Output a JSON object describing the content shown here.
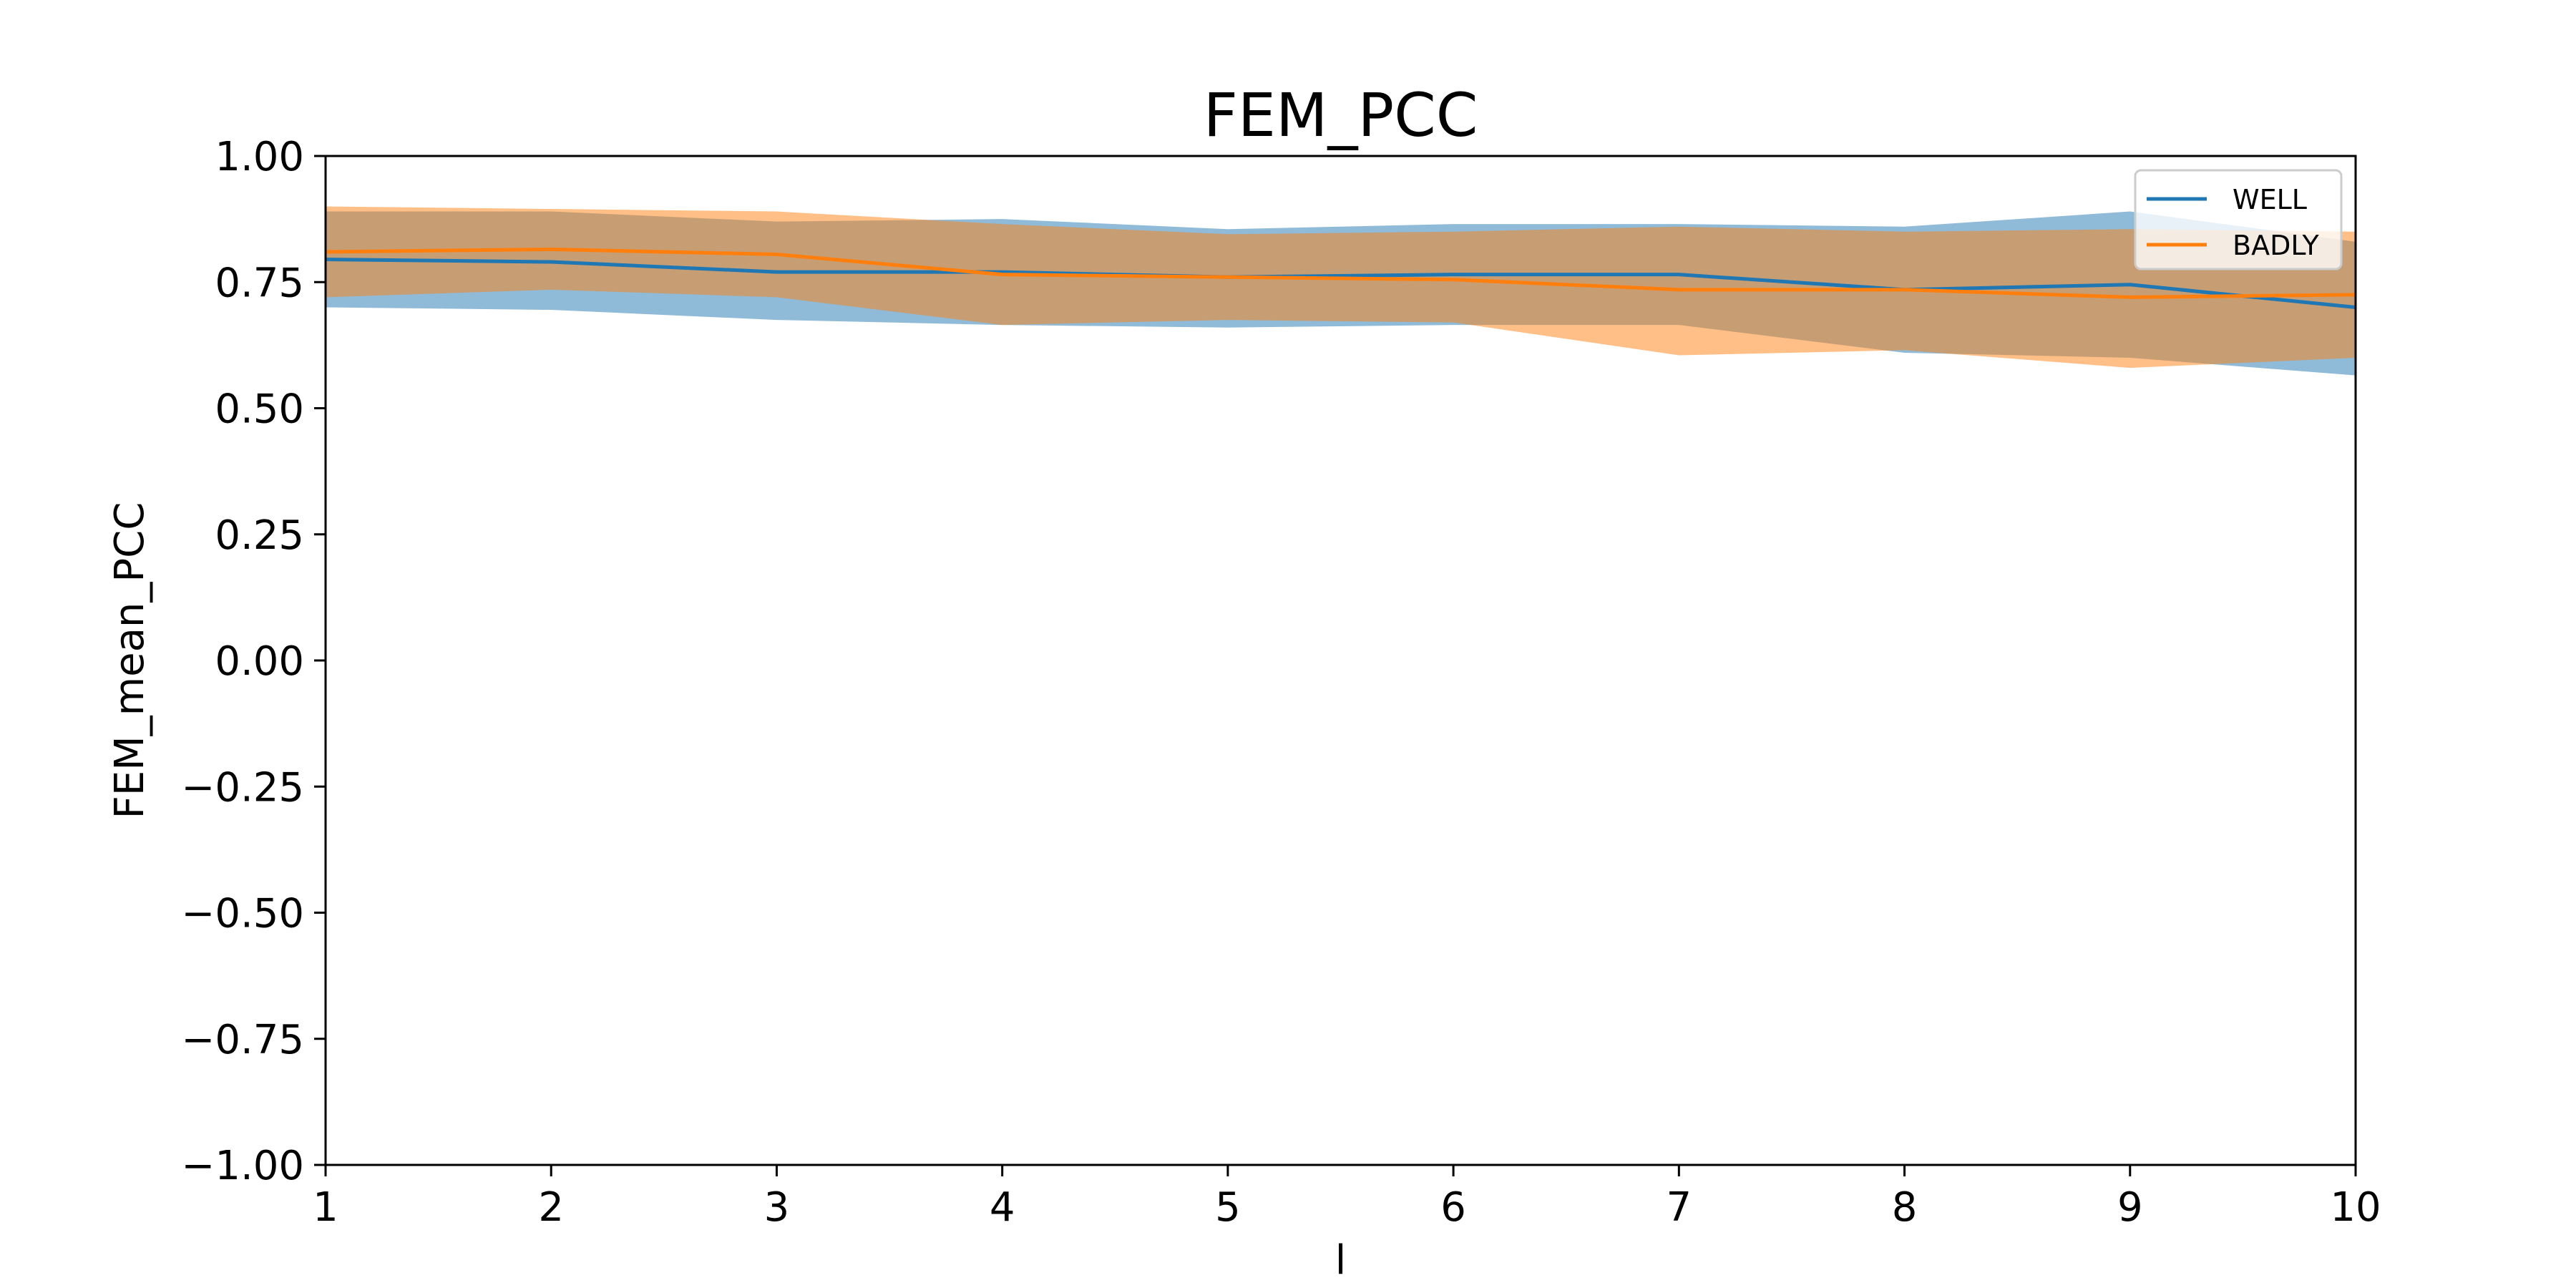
{
  "chart_data": {
    "type": "line",
    "title": "FEM_PCC",
    "xlabel": "l",
    "ylabel": "FEM_mean_PCC",
    "xlim": [
      1,
      10
    ],
    "ylim": [
      -1.0,
      1.0
    ],
    "x": [
      1,
      2,
      3,
      4,
      5,
      6,
      7,
      8,
      9,
      10
    ],
    "x_ticks": [
      1,
      2,
      3,
      4,
      5,
      6,
      7,
      8,
      9,
      10
    ],
    "x_tick_labels": [
      "1",
      "2",
      "3",
      "4",
      "5",
      "6",
      "7",
      "8",
      "9",
      "10"
    ],
    "y_ticks": [
      -1.0,
      -0.75,
      -0.5,
      -0.25,
      0.0,
      0.25,
      0.5,
      0.75,
      1.0
    ],
    "y_tick_labels": [
      "−1.00",
      "−0.75",
      "−0.50",
      "−0.25",
      "0.00",
      "0.25",
      "0.50",
      "0.75",
      "1.00"
    ],
    "grid": false,
    "legend_position": "top-right",
    "series": [
      {
        "name": "WELL",
        "color": "#1f77b4",
        "band_color": "#1f77b4",
        "values": [
          0.795,
          0.79,
          0.77,
          0.77,
          0.76,
          0.765,
          0.765,
          0.735,
          0.745,
          0.7
        ],
        "upper": [
          0.89,
          0.89,
          0.87,
          0.875,
          0.855,
          0.865,
          0.865,
          0.86,
          0.89,
          0.83
        ],
        "lower": [
          0.7,
          0.695,
          0.675,
          0.665,
          0.66,
          0.665,
          0.665,
          0.61,
          0.6,
          0.565
        ]
      },
      {
        "name": "BADLY",
        "color": "#ff7f0e",
        "band_color": "#ff7f0e",
        "values": [
          0.81,
          0.815,
          0.805,
          0.765,
          0.76,
          0.755,
          0.735,
          0.735,
          0.72,
          0.725
        ],
        "upper": [
          0.9,
          0.895,
          0.89,
          0.865,
          0.845,
          0.85,
          0.86,
          0.85,
          0.855,
          0.85
        ],
        "lower": [
          0.72,
          0.735,
          0.72,
          0.665,
          0.675,
          0.67,
          0.605,
          0.615,
          0.58,
          0.6
        ]
      }
    ]
  }
}
